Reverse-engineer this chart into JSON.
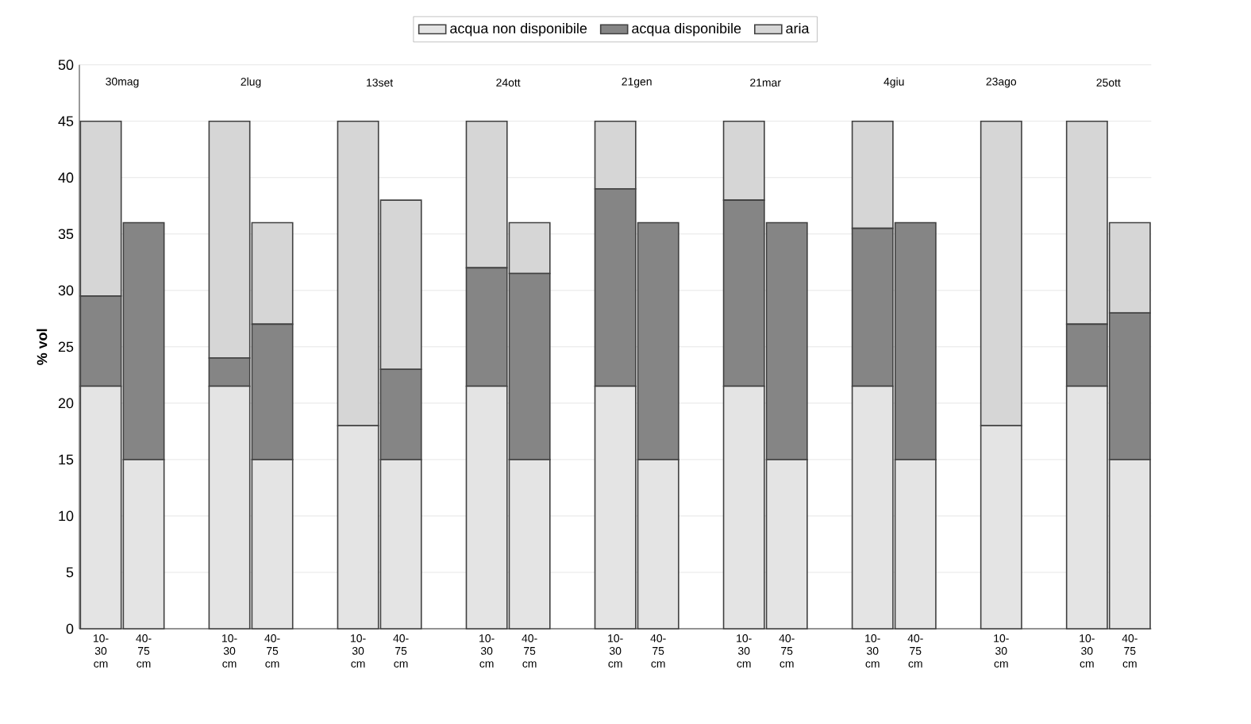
{
  "chart_data": {
    "type": "bar",
    "stacked": true,
    "ylabel": "% vol",
    "categories": [
      "10-30 cm",
      "40-75 cm",
      null,
      "10-30 cm",
      "40-75 cm",
      null,
      "10-30 cm",
      "40-75 cm",
      null,
      "10-30 cm",
      "40-75 cm",
      null,
      "10-30 cm",
      "40-75 cm",
      null,
      "10-30 cm",
      "40-75 cm",
      null,
      "10-30 cm",
      "40-75 cm",
      null,
      "10-30 cm",
      null,
      "10-30 cm",
      "40-75 cm"
    ],
    "series": [
      {
        "name": "acqua non disponibile",
        "color": "#e4e4e4",
        "values": [
          21.5,
          15,
          null,
          21.5,
          15,
          null,
          18,
          15,
          null,
          21.5,
          15,
          null,
          21.5,
          15,
          null,
          21.5,
          15,
          null,
          21.5,
          15,
          null,
          18,
          null,
          21.5,
          15
        ]
      },
      {
        "name": "acqua disponibile",
        "color": "#858585",
        "values": [
          8,
          21,
          null,
          2.5,
          12,
          null,
          0,
          8,
          null,
          10.5,
          16.5,
          null,
          17.5,
          21,
          null,
          16.5,
          21,
          null,
          14,
          21,
          null,
          0,
          null,
          5.5,
          13
        ]
      },
      {
        "name": "aria",
        "color": "#d6d6d6",
        "values": [
          15.5,
          0,
          null,
          21,
          9,
          null,
          27,
          15,
          null,
          13,
          4.5,
          null,
          6,
          0,
          null,
          7,
          0,
          null,
          9.5,
          0,
          null,
          27,
          null,
          18,
          8
        ]
      }
    ],
    "annotations": [
      "30mag",
      "2lug",
      "13set",
      "24ott",
      "21gen",
      "21mar",
      "4giu",
      "23ago",
      "25ott"
    ],
    "ylim": [
      0,
      50
    ],
    "yticks": [
      0,
      5,
      10,
      15,
      20,
      25,
      30,
      35,
      40,
      45,
      50
    ],
    "grid": "y",
    "legend": "top"
  }
}
